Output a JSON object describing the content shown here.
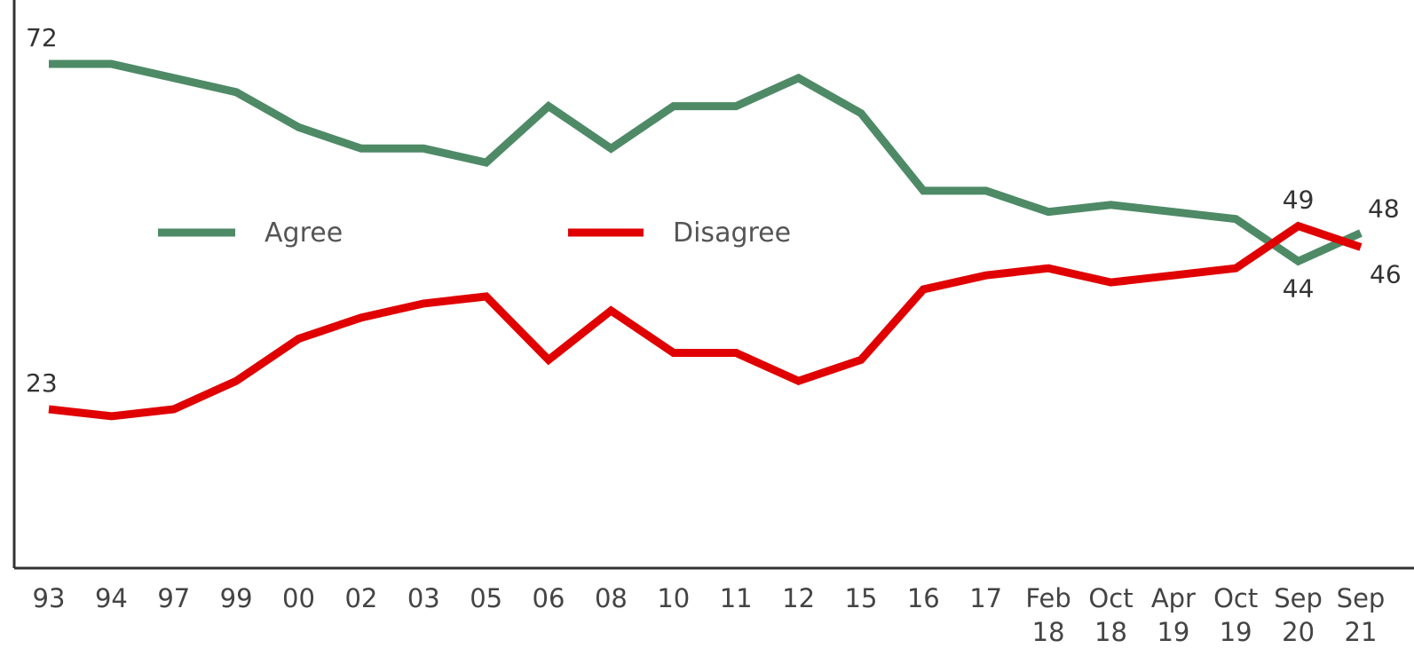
{
  "chart_data": {
    "type": "line",
    "title": "",
    "xlabel": "",
    "ylabel": "",
    "categories": [
      [
        "93"
      ],
      [
        "94"
      ],
      [
        "97"
      ],
      [
        "99"
      ],
      [
        "00"
      ],
      [
        "02"
      ],
      [
        "03"
      ],
      [
        "05"
      ],
      [
        "06"
      ],
      [
        "08"
      ],
      [
        "10"
      ],
      [
        "11"
      ],
      [
        "12"
      ],
      [
        "15"
      ],
      [
        "16"
      ],
      [
        "17"
      ],
      [
        "Feb",
        "18"
      ],
      [
        "Oct",
        "18"
      ],
      [
        "Apr",
        "19"
      ],
      [
        "Oct",
        "19"
      ],
      [
        "Sep",
        "20"
      ],
      [
        "Sep",
        "21"
      ]
    ],
    "ylim": [
      0,
      80
    ],
    "grid": false,
    "legend_position": "middle-left",
    "series": [
      {
        "name": "Agree",
        "color": "#4e8a66",
        "values": [
          72,
          72,
          70,
          68,
          63,
          60,
          60,
          58,
          66,
          60,
          66,
          66,
          70,
          65,
          54,
          54,
          51,
          52,
          51,
          50,
          44,
          48
        ]
      },
      {
        "name": "Disagree",
        "color": "#e00000",
        "values": [
          23,
          22,
          23,
          27,
          33,
          36,
          38,
          39,
          30,
          37,
          31,
          31,
          27,
          30,
          40,
          42,
          43,
          41,
          42,
          43,
          49,
          46
        ]
      }
    ],
    "data_labels": [
      {
        "series": "Agree",
        "index": 0,
        "text": "72",
        "position": "above"
      },
      {
        "series": "Disagree",
        "index": 0,
        "text": "23",
        "position": "above"
      },
      {
        "series": "Disagree",
        "index": 20,
        "text": "49",
        "position": "above"
      },
      {
        "series": "Agree",
        "index": 20,
        "text": "44",
        "position": "below"
      },
      {
        "series": "Agree",
        "index": 21,
        "text": "48",
        "position": "above-right"
      },
      {
        "series": "Disagree",
        "index": 21,
        "text": "46",
        "position": "below-right"
      }
    ]
  }
}
